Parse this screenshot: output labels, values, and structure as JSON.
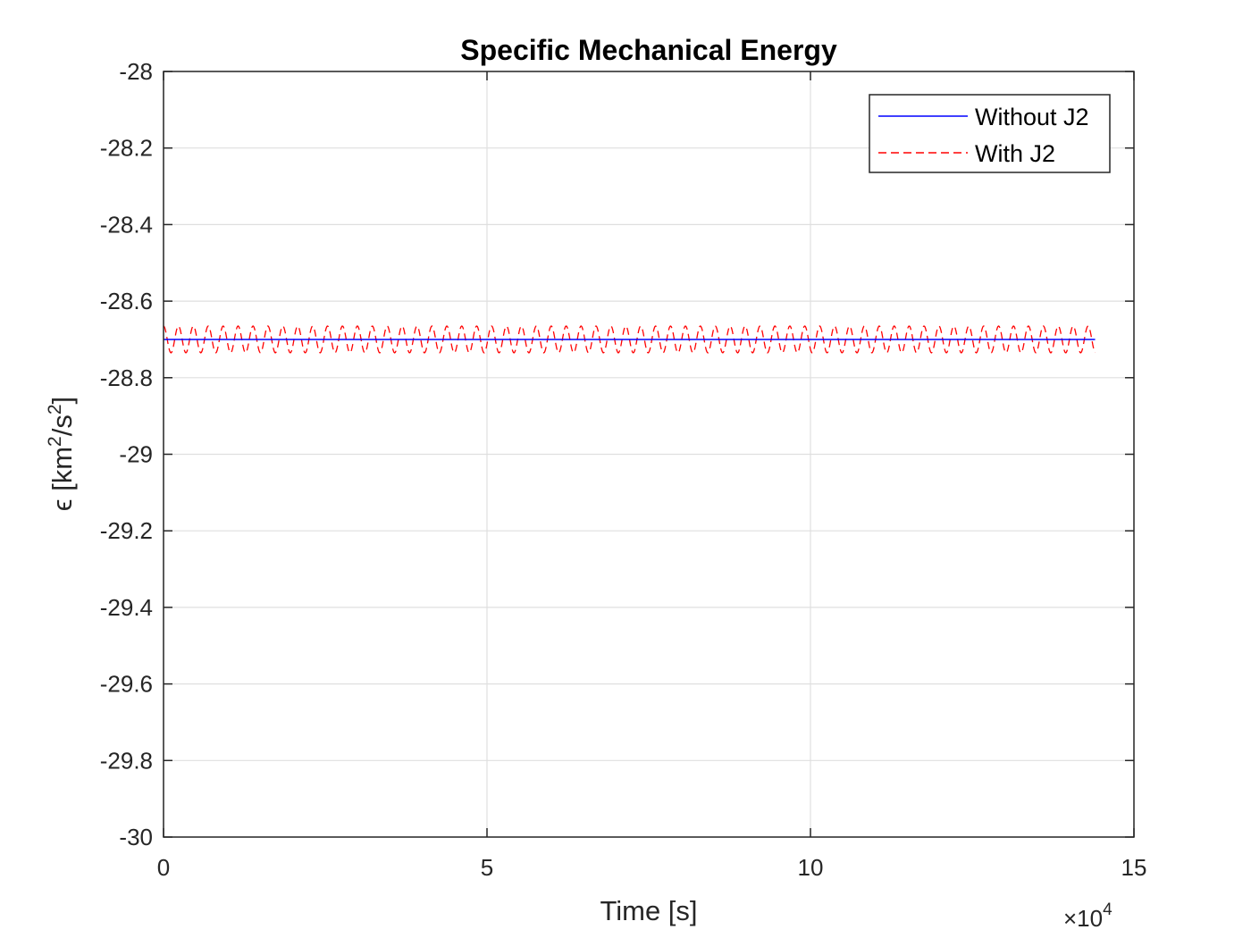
{
  "chart_data": {
    "type": "line",
    "title": "Specific Mechanical Energy",
    "xlabel": "Time [s]",
    "ylabel": "ϵ [km²/s²]",
    "ylabel_parts": {
      "symbol": "ϵ",
      "open": "[km",
      "sup1": "2",
      "mid": "/s",
      "sup2": "2",
      "close": "]"
    },
    "xlim": [
      0,
      15
    ],
    "ylim": [
      -30,
      -28
    ],
    "x_exponent": {
      "base": "×10",
      "power": "4"
    },
    "x_ticks": [
      0,
      5,
      10,
      15
    ],
    "x_tick_labels": [
      "0",
      "5",
      "10",
      "15"
    ],
    "y_ticks": [
      -30,
      -29.8,
      -29.6,
      -29.4,
      -29.2,
      -29,
      -28.8,
      -28.6,
      -28.4,
      -28.2,
      -28
    ],
    "y_tick_labels": [
      "-30",
      "-29.8",
      "-29.6",
      "-29.4",
      "-29.2",
      "-29",
      "-28.8",
      "-28.6",
      "-28.4",
      "-28.2",
      "-28"
    ],
    "grid": true,
    "legend_position": "top-right",
    "series": [
      {
        "name": "Without J2",
        "color": "#0000ff",
        "style": "solid",
        "x": [
          0,
          14.4
        ],
        "y": [
          -28.7,
          -28.7
        ]
      },
      {
        "name": "With J2",
        "color": "#ff0000",
        "style": "dashed",
        "oscillation": {
          "mean": -28.7,
          "amplitude": 0.035,
          "period": 0.2305,
          "x_start": 0,
          "x_end": 14.4
        }
      }
    ]
  }
}
